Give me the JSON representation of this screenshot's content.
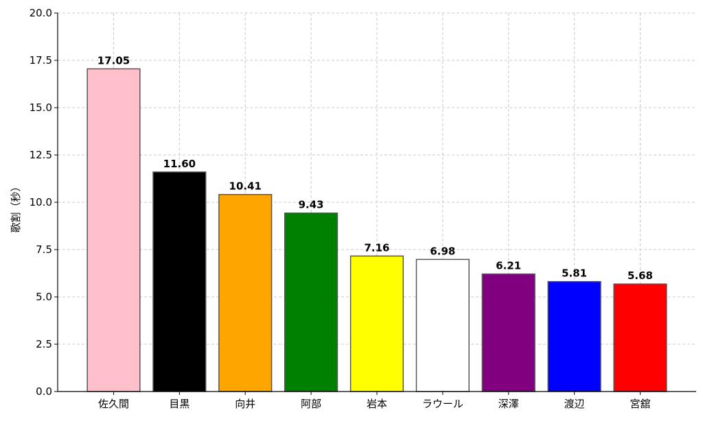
{
  "chart_data": {
    "type": "bar",
    "title": "",
    "xlabel": "",
    "ylabel": "歌割（秒）",
    "categories": [
      "佐久間",
      "目黒",
      "向井",
      "阿部",
      "岩本",
      "ラウール",
      "深澤",
      "渡辺",
      "宮舘"
    ],
    "values": [
      17.05,
      11.6,
      10.41,
      9.43,
      7.16,
      6.98,
      6.21,
      5.81,
      5.68
    ],
    "data_labels": [
      "17.05",
      "11.60",
      "10.41",
      "9.43",
      "7.16",
      "6.98",
      "6.21",
      "5.81",
      "5.68"
    ],
    "colors": [
      "#ffc0cb",
      "#000000",
      "#ffa500",
      "#008000",
      "#ffff00",
      "#ffffff",
      "#800080",
      "#0000ff",
      "#ff0000"
    ],
    "edge_color": "#555555",
    "ylim": [
      0,
      20
    ],
    "yticks": [
      "0.0",
      "2.5",
      "5.0",
      "7.5",
      "10.0",
      "12.5",
      "15.0",
      "17.5",
      "20.0"
    ],
    "grid": true,
    "legend": "none"
  }
}
